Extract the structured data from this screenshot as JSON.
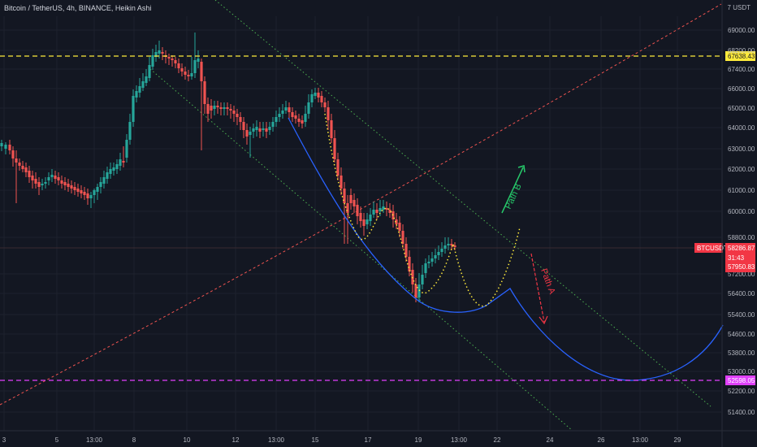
{
  "header": {
    "title": "Bitcoin / TetherUS, 4h, BINANCE, Heikin Ashi",
    "unit_label": "USDT",
    "unit_prefix": "7"
  },
  "chart_data": {
    "type": "candlestick",
    "symbol": "BTCUSDT",
    "y_ticks": [
      69000,
      68200,
      67400,
      66000,
      65000,
      64000,
      63000,
      62000,
      61000,
      60000,
      58800,
      57200,
      56400,
      55400,
      54600,
      53800,
      53000,
      52200,
      51400
    ],
    "y_tick_labels": [
      "69000.00",
      "68200.00",
      "67400.00",
      "66000.00",
      "65000.00",
      "64000.00",
      "63000.00",
      "62000.00",
      "61000.00",
      "60000.00",
      "58800.00",
      "57200.00",
      "56400.00",
      "55400.00",
      "54600.00",
      "53800.00",
      "53000.00",
      "52200.00",
      "51400.00"
    ],
    "x_tick_labels": [
      "3",
      "5",
      "13:00",
      "8",
      "10",
      "12",
      "13:00",
      "15",
      "17",
      "19",
      "13:00",
      "22",
      "24",
      "26",
      "13:00",
      "29"
    ],
    "horizontal_levels": [
      {
        "value": 67638.43,
        "label": "67638.43",
        "color": "#ffeb3b",
        "style": "dashed"
      },
      {
        "value": 52598.05,
        "label": "52598.05",
        "color": "#e040fb",
        "style": "dashed"
      }
    ],
    "price_badge": {
      "symbol": "BTCUSDT",
      "price": "58286.87",
      "countdown": "31:43",
      "prev_close": "57950.83",
      "color": "#f23645"
    },
    "annotations": [
      {
        "text": "Path B",
        "color": "#26c96a"
      },
      {
        "text": "Path A",
        "color": "#f23645"
      }
    ],
    "colors": {
      "up": "#26a69a",
      "down": "#ef5350",
      "channel": "#4caf50",
      "trend": "#ef5350",
      "projection": "#2962ff",
      "dotted_path": "#ffeb3b",
      "background": "#131722",
      "grid": "#1e222d"
    }
  }
}
